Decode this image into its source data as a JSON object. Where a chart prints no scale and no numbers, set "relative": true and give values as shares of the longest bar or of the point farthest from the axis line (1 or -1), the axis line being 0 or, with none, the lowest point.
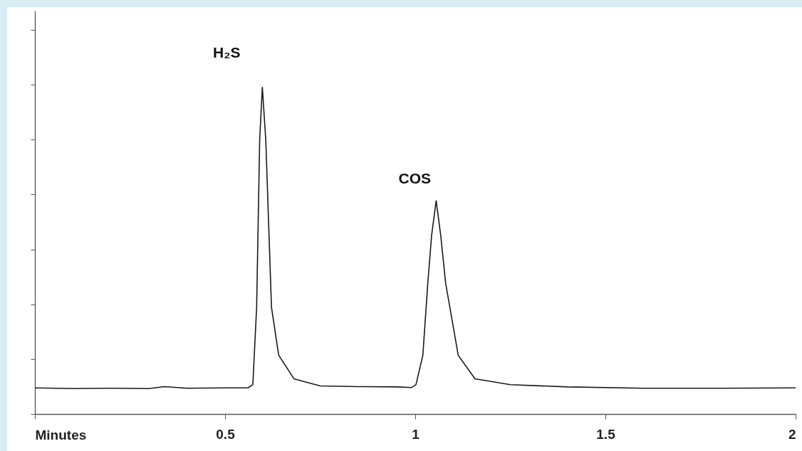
{
  "chart_data": {
    "type": "line",
    "relative": true,
    "xlabel": "Minutes",
    "x": [
      0,
      0.1,
      0.2,
      0.3,
      0.34,
      0.4,
      0.5,
      0.56,
      0.573,
      0.583,
      0.591,
      0.598,
      0.607,
      0.622,
      0.641,
      0.681,
      0.75,
      0.85,
      0.95,
      0.99,
      1.002,
      1.02,
      1.033,
      1.043,
      1.055,
      1.067,
      1.08,
      1.113,
      1.157,
      1.25,
      1.4,
      1.6,
      1.8,
      2
    ],
    "series": [
      {
        "color": "#1a1a1a",
        "values": [
          0.08,
          0.078,
          0.079,
          0.078,
          0.084,
          0.079,
          0.08,
          0.08,
          0.09,
          0.327,
          0.84,
          1,
          0.84,
          0.327,
          0.18,
          0.108,
          0.086,
          0.084,
          0.083,
          0.081,
          0.09,
          0.18,
          0.4,
          0.547,
          0.653,
          0.547,
          0.4,
          0.18,
          0.108,
          0.09,
          0.083,
          0.079,
          0.079,
          0.08
        ]
      }
    ],
    "xlim": [
      0,
      2
    ],
    "xticks": [
      {
        "value": 0,
        "label": null
      },
      0.5,
      1,
      1.5,
      2
    ],
    "line_style": "solid",
    "marker": "none",
    "grid": false,
    "annotations": [
      {
        "text": "H₂S",
        "x": 0.598,
        "y": 1
      },
      {
        "text": "COS",
        "x": 1.055,
        "y": 0.653
      }
    ]
  }
}
